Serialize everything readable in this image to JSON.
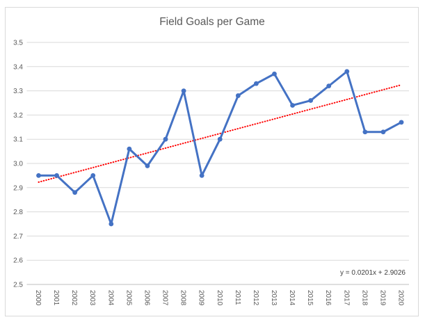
{
  "chart_data": {
    "type": "line",
    "title": "Field Goals per Game",
    "categories": [
      "2000",
      "2001",
      "2002",
      "2003",
      "2004",
      "2005",
      "2006",
      "2007",
      "2008",
      "2009",
      "2010",
      "2011",
      "2012",
      "2013",
      "2014",
      "2015",
      "2016",
      "2017",
      "2018",
      "2019",
      "2020"
    ],
    "series": [
      {
        "name": "Field Goals per Game",
        "values": [
          2.95,
          2.95,
          2.88,
          2.95,
          2.75,
          3.06,
          2.99,
          3.1,
          3.3,
          2.95,
          3.1,
          3.28,
          3.33,
          3.37,
          3.24,
          3.26,
          3.32,
          3.38,
          3.13,
          3.13,
          3.17
        ],
        "color": "#4472C4",
        "marker": "circle"
      }
    ],
    "xlabel": "",
    "ylabel": "",
    "ylim": [
      2.5,
      3.5
    ],
    "y_tick_labels": [
      "3.5",
      "3.4",
      "3.3",
      "3.2",
      "3.1",
      "3.0",
      "2.9",
      "2.8",
      "2.7",
      "2.6",
      "2.5"
    ],
    "grid": "horizontal",
    "legend": "none",
    "x_label_rotation_deg": 90,
    "trendline": {
      "label": "y = 0.0201x + 2.9026",
      "slope": 0.0201,
      "intercept": 2.9026,
      "color": "#FF0000",
      "style": "dotted"
    },
    "colors": {
      "title_text": "#595959",
      "axis_text": "#595959",
      "equation_text": "#3f3f3f",
      "gridline": "#d9d9d9",
      "axis_line": "#bfbfbf",
      "frame_border": "#d9d9d9",
      "background": "#ffffff"
    }
  }
}
